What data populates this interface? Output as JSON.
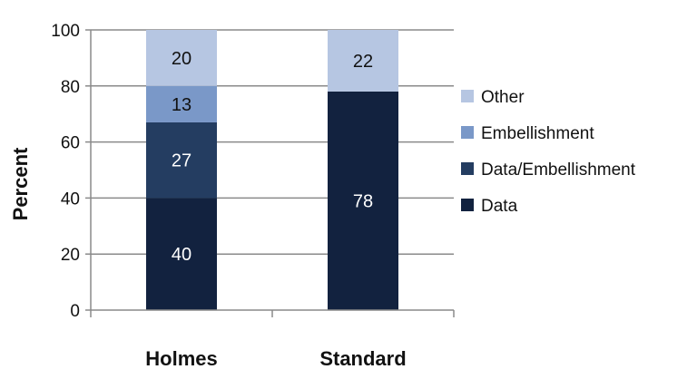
{
  "chart_data": {
    "type": "bar",
    "stacked": true,
    "categories": [
      "Holmes",
      "Standard"
    ],
    "series": [
      {
        "name": "Data",
        "values": [
          40,
          78
        ],
        "color": "#12223f",
        "label_color": "#ffffff"
      },
      {
        "name": "Data/Embellishment",
        "values": [
          27,
          0
        ],
        "color": "#243d61",
        "label_color": "#ffffff"
      },
      {
        "name": "Embellishment",
        "values": [
          13,
          0
        ],
        "color": "#7a98c8",
        "label_color": "#111111"
      },
      {
        "name": "Other",
        "values": [
          20,
          22
        ],
        "color": "#b6c6e2",
        "label_color": "#111111"
      }
    ],
    "ylabel": "Percent",
    "xlabel": "",
    "ylim": [
      0,
      100
    ],
    "yticks": [
      0,
      20,
      40,
      60,
      80,
      100
    ],
    "grid": true,
    "legend_position": "right",
    "legend_order": [
      "Other",
      "Embellishment",
      "Data/Embellishment",
      "Data"
    ]
  }
}
